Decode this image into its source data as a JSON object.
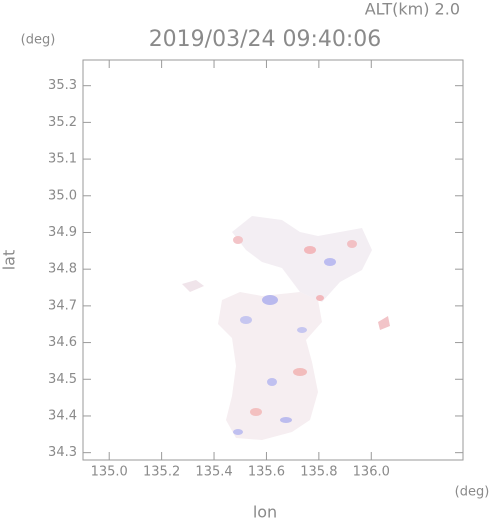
{
  "chart_data": {
    "type": "map",
    "title": "2019/03/24 09:40:06",
    "subtitle": "ALT(km) 2.0",
    "y_unit": "(deg)",
    "x_unit": "(deg)",
    "x_label": "lon",
    "y_label": "lat",
    "xlim": [
      134.9,
      136.35
    ],
    "ylim": [
      34.28,
      35.37
    ],
    "xticks": [
      {
        "value": 135,
        "label": "135.0"
      },
      135.2,
      135.4,
      135.6,
      135.8,
      {
        "value": 136,
        "label": "136.0"
      }
    ],
    "yticks": [
      34.3,
      34.4,
      34.5,
      34.6,
      34.7,
      34.8,
      34.9,
      {
        "value": 35,
        "label": "35.0"
      },
      35.1,
      35.2,
      35.3
    ]
  }
}
